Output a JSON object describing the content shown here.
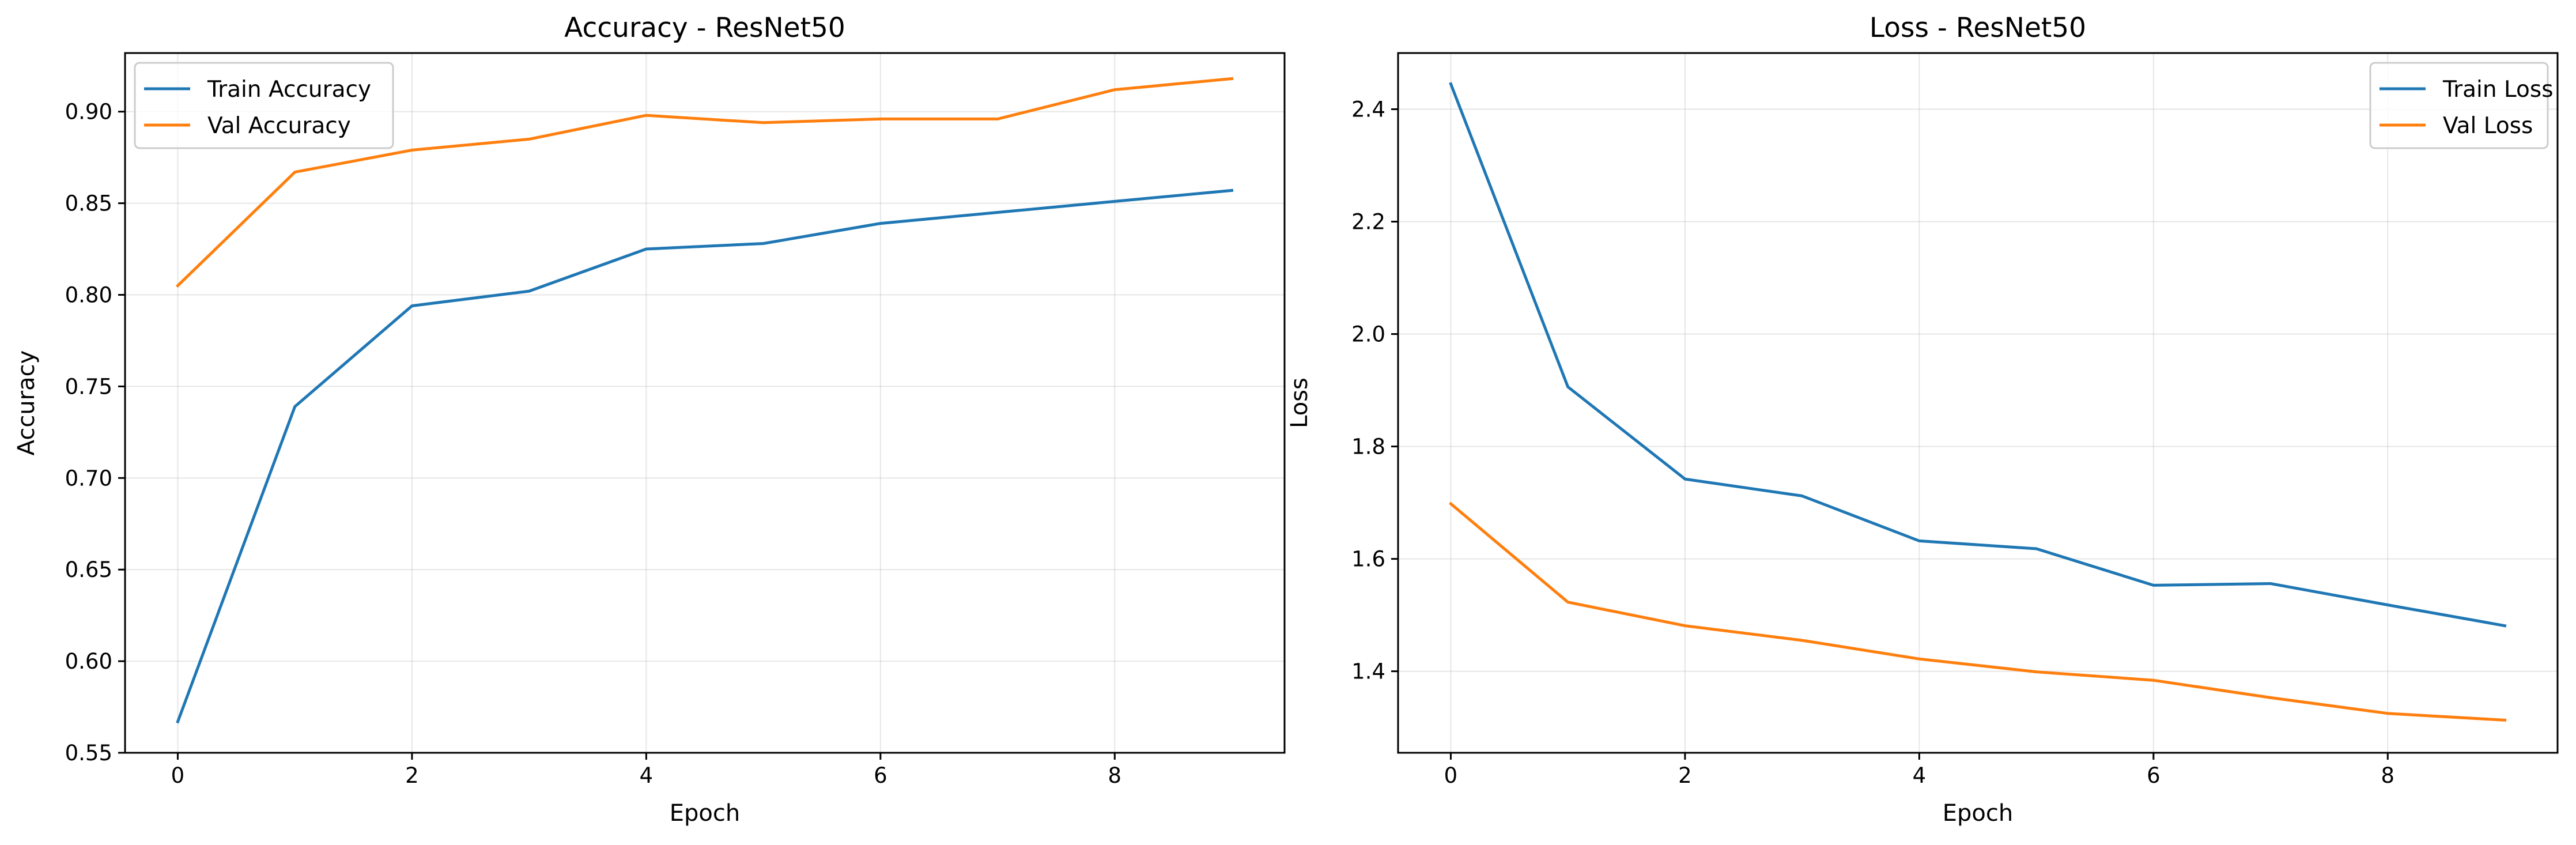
{
  "chart_data": [
    {
      "type": "line",
      "title": "Accuracy - ResNet50",
      "xlabel": "Epoch",
      "ylabel": "Accuracy",
      "x": [
        0,
        1,
        2,
        3,
        4,
        5,
        6,
        7,
        8,
        9
      ],
      "xlim": [
        -0.45,
        9.45
      ],
      "ylim": [
        0.55,
        0.932
      ],
      "xticks": [
        0,
        2,
        4,
        6,
        8
      ],
      "yticks": [
        0.55,
        0.6,
        0.65,
        0.7,
        0.75,
        0.8,
        0.85,
        0.9
      ],
      "ytick_labels": [
        "0.55",
        "0.60",
        "0.65",
        "0.70",
        "0.75",
        "0.80",
        "0.85",
        "0.90"
      ],
      "grid": true,
      "legend_position": "top-left",
      "series": [
        {
          "name": "Train Accuracy",
          "color": "#1f77b4",
          "values": [
            0.567,
            0.739,
            0.794,
            0.802,
            0.825,
            0.828,
            0.839,
            0.845,
            0.851,
            0.857
          ]
        },
        {
          "name": "Val Accuracy",
          "color": "#ff7f0e",
          "values": [
            0.805,
            0.867,
            0.879,
            0.885,
            0.898,
            0.894,
            0.896,
            0.896,
            0.912,
            0.918
          ]
        }
      ]
    },
    {
      "type": "line",
      "title": "Loss - ResNet50",
      "xlabel": "Epoch",
      "ylabel": "Loss",
      "x": [
        0,
        1,
        2,
        3,
        4,
        5,
        6,
        7,
        8,
        9
      ],
      "xlim": [
        -0.45,
        9.45
      ],
      "ylim": [
        1.255,
        2.5
      ],
      "xticks": [
        0,
        2,
        4,
        6,
        8
      ],
      "yticks": [
        1.4,
        1.6,
        1.8,
        2.0,
        2.2,
        2.4
      ],
      "ytick_labels": [
        "1.4",
        "1.6",
        "1.8",
        "2.0",
        "2.2",
        "2.4"
      ],
      "grid": true,
      "legend_position": "top-right",
      "series": [
        {
          "name": "Train Loss",
          "color": "#1f77b4",
          "values": [
            2.445,
            1.906,
            1.742,
            1.712,
            1.632,
            1.618,
            1.553,
            1.556,
            1.518,
            1.481
          ]
        },
        {
          "name": "Val Loss",
          "color": "#ff7f0e",
          "values": [
            1.698,
            1.523,
            1.481,
            1.455,
            1.422,
            1.399,
            1.384,
            1.353,
            1.325,
            1.313
          ]
        }
      ]
    }
  ]
}
